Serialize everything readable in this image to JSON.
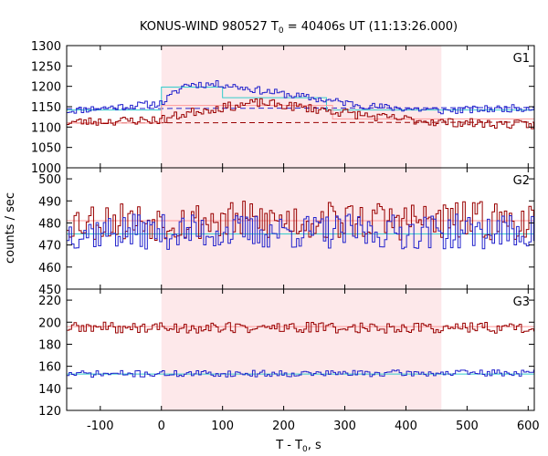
{
  "chart_data": {
    "type": "line",
    "title": {
      "prefix": "KONUS-WIND 980527 T",
      "sub": "0",
      "suffix": " = 40406s UT (11:13:26.000)"
    },
    "xlabel": {
      "prefix": "T - T",
      "sub": "0",
      "suffix": ", s"
    },
    "ylabel": "counts / sec",
    "xlim": [
      -155,
      610
    ],
    "xticks": [
      -100,
      0,
      100,
      200,
      300,
      400,
      500,
      600
    ],
    "shaded_interval": {
      "x": [
        0,
        458
      ],
      "color": "#fde8ea"
    },
    "colors": {
      "red_series": "#990000",
      "blue_series": "#2222cc",
      "cyan_fit": "#33cccc",
      "pink_fit": "#ff9999",
      "shade": "#fde8ea"
    },
    "panels": [
      {
        "label": "G1",
        "ylim": [
          1000,
          1300
        ],
        "yticks": [
          1000,
          1050,
          1100,
          1150,
          1200,
          1250,
          1300
        ],
        "blue": {
          "base": [
            [
              -155,
              1140
            ],
            [
              0,
              1158
            ],
            [
              40,
              1205
            ],
            [
              100,
              1205
            ],
            [
              170,
              1188
            ],
            [
              250,
              1170
            ],
            [
              350,
              1150
            ],
            [
              460,
              1140
            ],
            [
              610,
              1148
            ]
          ],
          "amp": 9,
          "seed": 11
        },
        "red": {
          "base": [
            [
              -155,
              1112
            ],
            [
              0,
              1118
            ],
            [
              60,
              1140
            ],
            [
              160,
              1160
            ],
            [
              250,
              1145
            ],
            [
              350,
              1125
            ],
            [
              460,
              1112
            ],
            [
              610,
              1105
            ]
          ],
          "amp": 11,
          "seed": 23
        },
        "lines": [
          {
            "color": "blue_series",
            "dash": true,
            "points": [
              [
                -155,
                1145
              ],
              [
                610,
                1148
              ]
            ]
          },
          {
            "color": "red_series",
            "dash": true,
            "points": [
              [
                -155,
                1110
              ],
              [
                610,
                1112
              ]
            ]
          },
          {
            "color": "cyan_fit",
            "dash": false,
            "points": [
              [
                -155,
                1142
              ],
              [
                0,
                1142
              ],
              [
                0,
                1198
              ],
              [
                100,
                1198
              ],
              [
                100,
                1172
              ],
              [
                270,
                1172
              ],
              [
                270,
                1142
              ],
              [
                610,
                1142
              ]
            ]
          },
          {
            "color": "pink_fit",
            "dash": false,
            "points": [
              [
                -155,
                1110
              ],
              [
                0,
                1110
              ],
              [
                0,
                1153
              ],
              [
                280,
                1153
              ],
              [
                280,
                1120
              ],
              [
                610,
                1120
              ]
            ]
          }
        ]
      },
      {
        "label": "G2",
        "ylim": [
          450,
          505
        ],
        "yticks": [
          450,
          460,
          470,
          480,
          490,
          500
        ],
        "blue": {
          "base": [
            [
              -155,
              476
            ],
            [
              610,
              476
            ]
          ],
          "amp": 8,
          "seed": 37
        },
        "red": {
          "base": [
            [
              -155,
              481
            ],
            [
              610,
              481
            ]
          ],
          "amp": 9,
          "seed": 53
        },
        "lines": [
          {
            "color": "pink_fit",
            "dash": false,
            "points": [
              [
                -155,
                481
              ],
              [
                610,
                481
              ]
            ]
          },
          {
            "color": "cyan_fit",
            "dash": false,
            "points": [
              [
                -155,
                475
              ],
              [
                610,
                475
              ]
            ]
          }
        ]
      },
      {
        "label": "G3",
        "ylim": [
          120,
          230
        ],
        "yticks": [
          120,
          140,
          160,
          180,
          200,
          220
        ],
        "blue": {
          "base": [
            [
              -155,
              153
            ],
            [
              610,
              154
            ]
          ],
          "amp": 3,
          "seed": 71
        },
        "red": {
          "base": [
            [
              -155,
              195
            ],
            [
              610,
              195
            ]
          ],
          "amp": 5,
          "seed": 89
        },
        "lines": [
          {
            "color": "pink_fit",
            "dash": false,
            "points": [
              [
                -155,
                196
              ],
              [
                610,
                196
              ]
            ]
          },
          {
            "color": "cyan_fit",
            "dash": false,
            "points": [
              [
                -155,
                153
              ],
              [
                610,
                153
              ]
            ]
          }
        ]
      }
    ]
  }
}
